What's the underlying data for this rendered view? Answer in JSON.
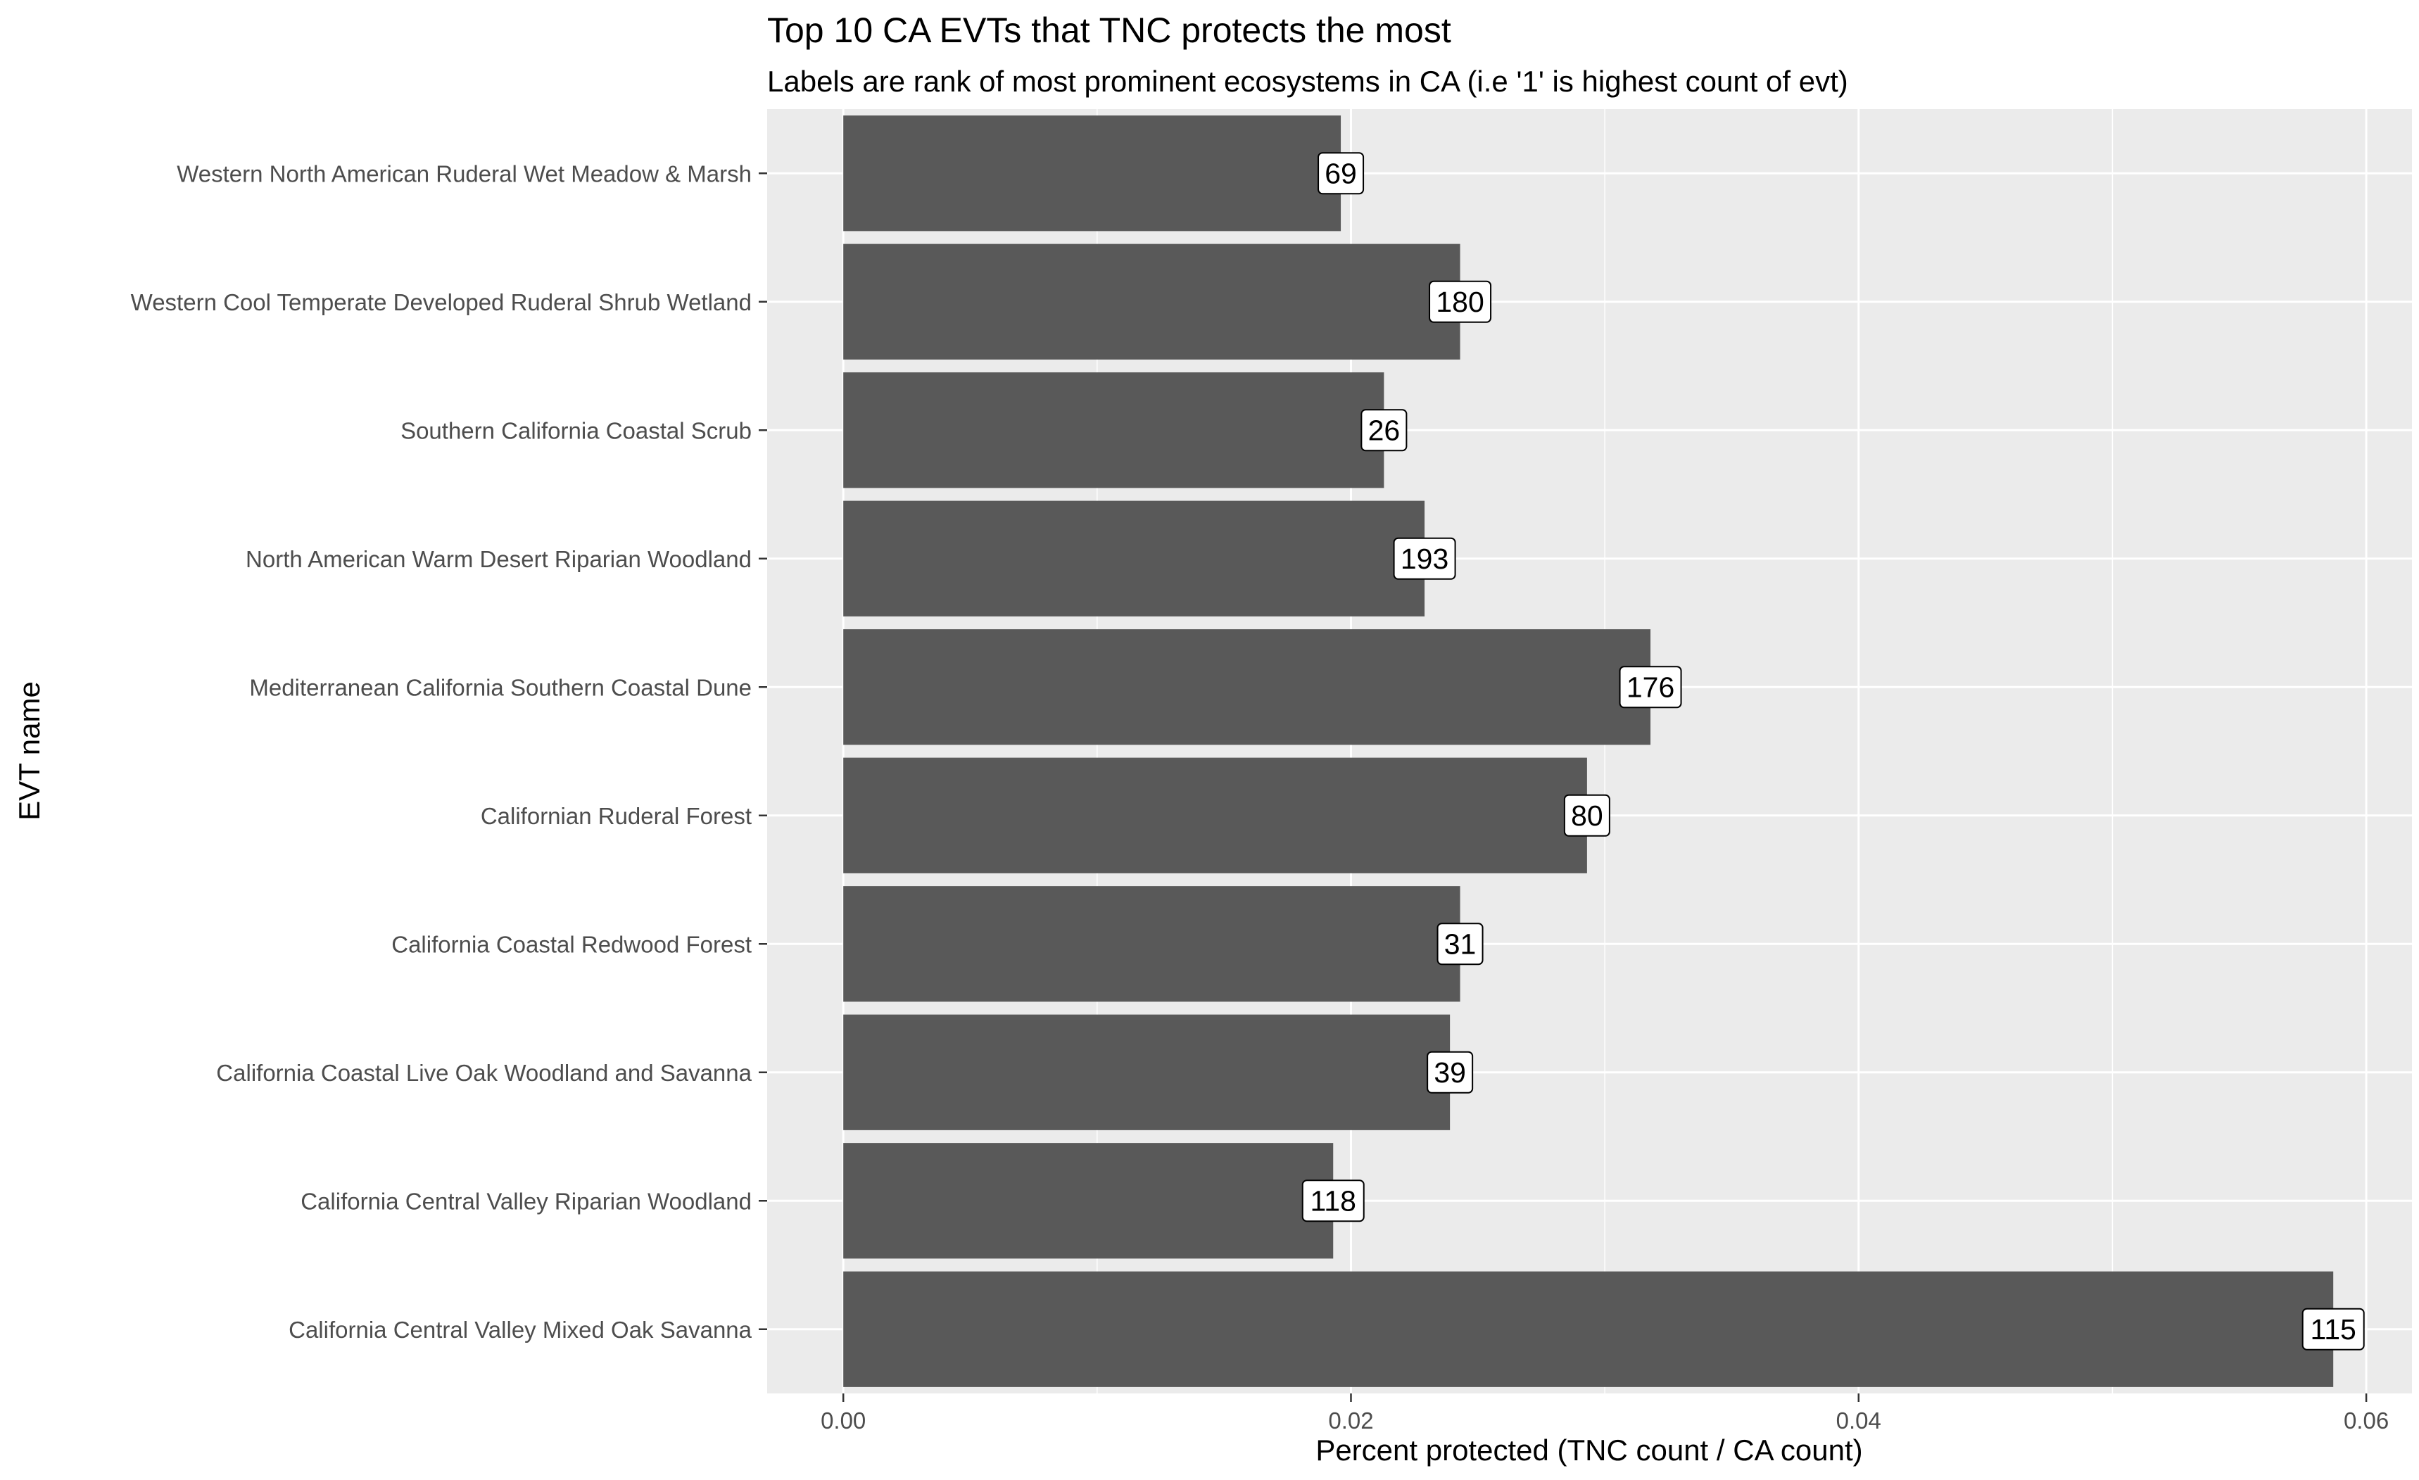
{
  "chart_data": {
    "type": "bar",
    "orientation": "horizontal",
    "title": "Top 10 CA EVTs that TNC protects the most",
    "subtitle": "Labels are rank of most prominent ecosystems in CA (i.e '1' is highest count of evt)",
    "xlabel": "Percent protected (TNC count / CA count)",
    "ylabel": "EVT name",
    "xlim": [
      -0.003,
      0.0618
    ],
    "xticks": [
      0.0,
      0.02,
      0.04,
      0.06
    ],
    "xtick_labels": [
      "0.00",
      "0.02",
      "0.04",
      "0.06"
    ],
    "grid": true,
    "colors": {
      "bar": "#595959",
      "panel": "#ebebeb",
      "grid_major": "#ffffff",
      "tick_text": "#4d4d4d"
    },
    "categories": [
      "Western North American Ruderal Wet Meadow & Marsh",
      "Western Cool Temperate Developed Ruderal Shrub Wetland",
      "Southern California Coastal Scrub",
      "North American Warm Desert Riparian Woodland",
      "Mediterranean California Southern Coastal Dune",
      "Californian Ruderal Forest",
      "California Coastal Redwood Forest",
      "California Coastal Live Oak Woodland and Savanna",
      "California Central Valley Riparian Woodland",
      "California Central Valley Mixed Oak Savanna"
    ],
    "values": [
      0.0196,
      0.0243,
      0.0213,
      0.0229,
      0.0318,
      0.0293,
      0.0243,
      0.0239,
      0.0193,
      0.0587
    ],
    "labels": [
      "69",
      "180",
      "26",
      "193",
      "176",
      "80",
      "31",
      "39",
      "118",
      "115"
    ]
  }
}
